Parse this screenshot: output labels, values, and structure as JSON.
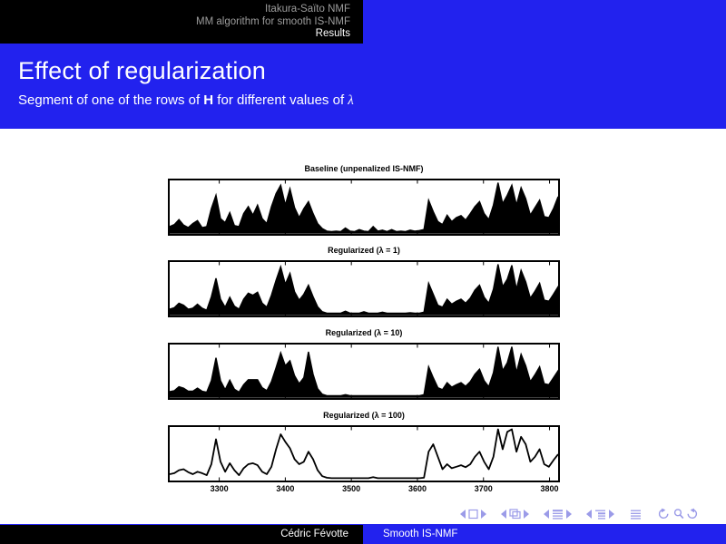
{
  "slide": {
    "header": {
      "items": [
        "Itakura-Saïto NMF",
        "MM algorithm for smooth IS-NMF",
        "Results"
      ],
      "active_item": "Results"
    },
    "title": "Effect of regularization",
    "subtitle": {
      "prefix": "Segment of one of the rows of ",
      "bold_term": "H",
      "middle": " for different values of ",
      "math_symbol": "λ"
    },
    "footer": {
      "author": "Cédric Févotte",
      "short_title": "Smooth IS-NMF"
    },
    "nav_symbols": [
      "prev-slide",
      "slide",
      "next-slide",
      "prev-frame",
      "frame",
      "next-frame",
      "prev-section",
      "section",
      "next-section",
      "prev-subsection",
      "subsection",
      "next-subsection",
      "appendix",
      "back",
      "find",
      "forward"
    ],
    "colors": {
      "accent_blue": "#2222ee",
      "header_black": "#000000",
      "header_dim_text": "#9c9c9c",
      "nav_symbol_blue": "#9b9be8",
      "trace_black": "#000000"
    }
  },
  "chart_data": [
    {
      "type": "line",
      "title": "Baseline (unpenalized IS-NMF)",
      "style": "filled",
      "x_start": 3225,
      "x_step": 7,
      "xlim": [
        3225,
        3813
      ],
      "ylim": [
        0,
        1
      ],
      "xticks": [
        3300,
        3400,
        3500,
        3600,
        3700,
        3800
      ],
      "show_xtick_labels": false,
      "values": [
        0.12,
        0.16,
        0.26,
        0.15,
        0.1,
        0.18,
        0.24,
        0.1,
        0.12,
        0.48,
        0.75,
        0.28,
        0.2,
        0.4,
        0.14,
        0.12,
        0.38,
        0.52,
        0.35,
        0.55,
        0.28,
        0.18,
        0.52,
        0.78,
        0.95,
        0.55,
        0.88,
        0.5,
        0.3,
        0.48,
        0.62,
        0.38,
        0.18,
        0.08,
        0.03,
        0.02,
        0.03,
        0.02,
        0.09,
        0.03,
        0.02,
        0.06,
        0.03,
        0.02,
        0.12,
        0.03,
        0.05,
        0.02,
        0.06,
        0.02,
        0.03,
        0.02,
        0.05,
        0.03,
        0.04,
        0.06,
        0.65,
        0.42,
        0.22,
        0.16,
        0.35,
        0.22,
        0.3,
        0.34,
        0.25,
        0.38,
        0.52,
        0.62,
        0.38,
        0.26,
        0.55,
        1.0,
        0.58,
        0.75,
        0.95,
        0.55,
        0.9,
        0.68,
        0.35,
        0.5,
        0.65,
        0.32,
        0.3,
        0.48,
        0.72
      ]
    },
    {
      "type": "line",
      "title": "Regularized (λ = 1)",
      "style": "filled",
      "x_start": 3225,
      "x_step": 7,
      "xlim": [
        3225,
        3813
      ],
      "ylim": [
        0,
        1
      ],
      "xticks": [
        3300,
        3400,
        3500,
        3600,
        3700,
        3800
      ],
      "show_xtick_labels": false,
      "values": [
        0.1,
        0.13,
        0.22,
        0.18,
        0.1,
        0.12,
        0.2,
        0.12,
        0.08,
        0.35,
        0.72,
        0.3,
        0.14,
        0.34,
        0.16,
        0.1,
        0.3,
        0.42,
        0.38,
        0.44,
        0.22,
        0.14,
        0.38,
        0.68,
        0.95,
        0.6,
        0.82,
        0.45,
        0.28,
        0.4,
        0.58,
        0.35,
        0.15,
        0.05,
        0.02,
        0.02,
        0.02,
        0.02,
        0.06,
        0.02,
        0.02,
        0.02,
        0.05,
        0.02,
        0.02,
        0.02,
        0.04,
        0.02,
        0.02,
        0.02,
        0.02,
        0.02,
        0.03,
        0.02,
        0.02,
        0.04,
        0.62,
        0.4,
        0.18,
        0.14,
        0.3,
        0.2,
        0.26,
        0.3,
        0.22,
        0.32,
        0.48,
        0.58,
        0.34,
        0.22,
        0.5,
        1.0,
        0.55,
        0.7,
        0.98,
        0.5,
        0.88,
        0.65,
        0.32,
        0.46,
        0.62,
        0.28,
        0.26,
        0.4,
        0.55
      ]
    },
    {
      "type": "line",
      "title": "Regularized (λ = 10)",
      "style": "filled",
      "x_start": 3225,
      "x_step": 7,
      "xlim": [
        3225,
        3813
      ],
      "ylim": [
        0,
        1
      ],
      "xticks": [
        3300,
        3400,
        3500,
        3600,
        3700,
        3800
      ],
      "show_xtick_labels": false,
      "values": [
        0.1,
        0.12,
        0.2,
        0.17,
        0.11,
        0.11,
        0.17,
        0.11,
        0.09,
        0.32,
        0.78,
        0.32,
        0.14,
        0.33,
        0.15,
        0.09,
        0.24,
        0.34,
        0.34,
        0.34,
        0.18,
        0.12,
        0.3,
        0.58,
        0.88,
        0.62,
        0.72,
        0.42,
        0.26,
        0.38,
        0.9,
        0.45,
        0.16,
        0.05,
        0.02,
        0.02,
        0.02,
        0.02,
        0.04,
        0.02,
        0.02,
        0.02,
        0.02,
        0.02,
        0.02,
        0.02,
        0.02,
        0.02,
        0.02,
        0.02,
        0.02,
        0.02,
        0.02,
        0.02,
        0.02,
        0.04,
        0.6,
        0.38,
        0.18,
        0.14,
        0.28,
        0.19,
        0.24,
        0.28,
        0.21,
        0.3,
        0.45,
        0.55,
        0.32,
        0.2,
        0.48,
        1.0,
        0.52,
        0.68,
        1.0,
        0.48,
        0.85,
        0.62,
        0.3,
        0.44,
        0.6,
        0.26,
        0.24,
        0.38,
        0.52
      ]
    },
    {
      "type": "line",
      "title": "Regularized (λ = 100)",
      "style": "line",
      "x_start": 3225,
      "x_step": 7,
      "xlim": [
        3225,
        3813
      ],
      "ylim": [
        0,
        1
      ],
      "xticks": [
        3300,
        3400,
        3500,
        3600,
        3700,
        3800
      ],
      "show_xtick_labels": true,
      "values": [
        0.1,
        0.12,
        0.18,
        0.2,
        0.14,
        0.1,
        0.15,
        0.12,
        0.08,
        0.3,
        0.8,
        0.35,
        0.15,
        0.32,
        0.18,
        0.08,
        0.22,
        0.3,
        0.32,
        0.28,
        0.15,
        0.1,
        0.25,
        0.6,
        0.9,
        0.75,
        0.62,
        0.4,
        0.3,
        0.35,
        0.55,
        0.4,
        0.18,
        0.06,
        0.03,
        0.02,
        0.02,
        0.02,
        0.02,
        0.02,
        0.02,
        0.02,
        0.02,
        0.02,
        0.04,
        0.02,
        0.02,
        0.02,
        0.02,
        0.02,
        0.02,
        0.02,
        0.02,
        0.02,
        0.02,
        0.03,
        0.55,
        0.7,
        0.45,
        0.2,
        0.3,
        0.22,
        0.25,
        0.28,
        0.24,
        0.3,
        0.45,
        0.55,
        0.35,
        0.2,
        0.45,
        1.0,
        0.6,
        0.95,
        1.0,
        0.55,
        0.85,
        0.7,
        0.35,
        0.45,
        0.6,
        0.3,
        0.25,
        0.38,
        0.5
      ]
    }
  ]
}
